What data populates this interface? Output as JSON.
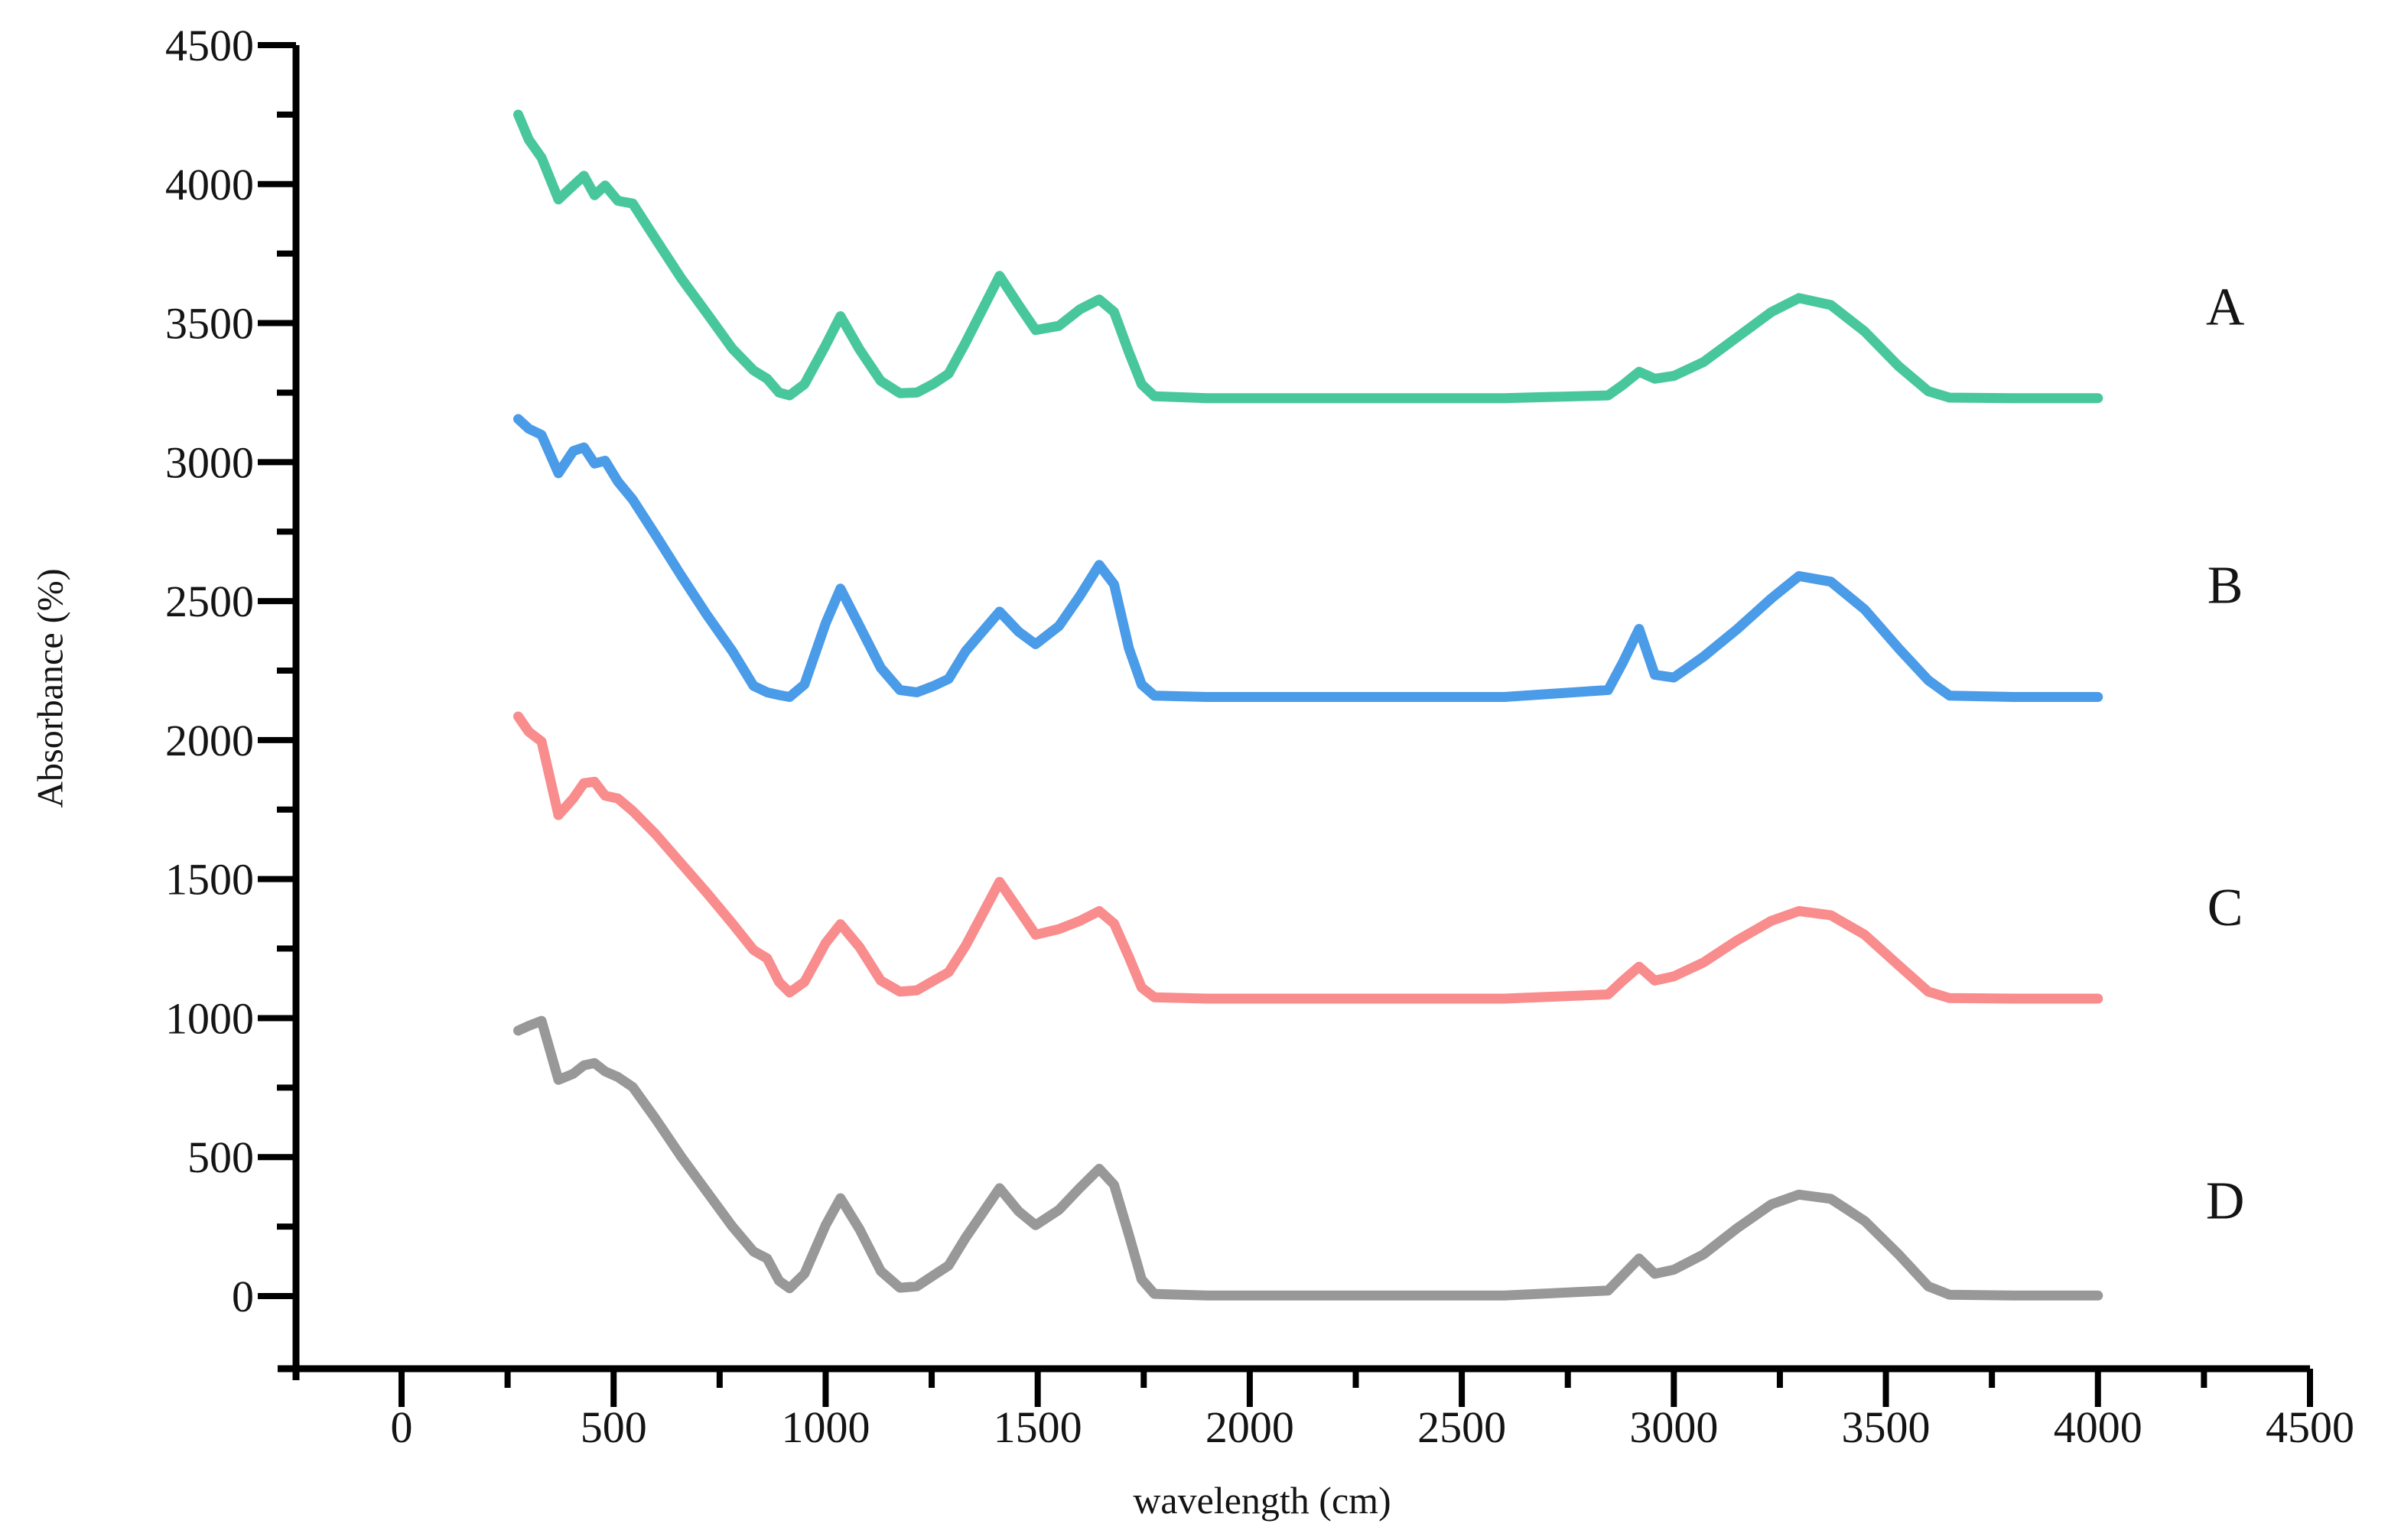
{
  "page": {
    "background": "#ffffff"
  },
  "axes": {
    "axis_color": "#000000",
    "label_color": "#141414",
    "x": {
      "title": "wavelength (cm)",
      "min": 0,
      "max": 4500,
      "major_step": 500,
      "minor_step": 250,
      "tick_labels": [
        "0",
        "500",
        "1000",
        "1500",
        "2000",
        "2500",
        "3000",
        "3500",
        "4000",
        "4500"
      ]
    },
    "y": {
      "title": "Absorbance (%)",
      "min": 0,
      "max": 4500,
      "major_step": 500,
      "minor_step": 250,
      "tick_labels": [
        "0",
        "500",
        "1000",
        "1500",
        "2000",
        "2500",
        "3000",
        "3500",
        "4000",
        "4500"
      ]
    }
  },
  "chart_data": {
    "type": "line",
    "title": "",
    "xlabel": "wavelength (cm)",
    "ylabel": "Absorbance (%)",
    "xlim": [
      0,
      4500
    ],
    "ylim": [
      0,
      4500
    ],
    "grid": false,
    "legend_position": "labels-at-right-of-each-curve",
    "x": [
      275,
      300,
      330,
      370,
      405,
      430,
      455,
      480,
      510,
      545,
      600,
      660,
      720,
      780,
      830,
      862,
      890,
      915,
      950,
      1000,
      1035,
      1080,
      1130,
      1175,
      1215,
      1255,
      1290,
      1330,
      1410,
      1455,
      1495,
      1550,
      1600,
      1645,
      1680,
      1715,
      1745,
      1775,
      1900,
      2200,
      2600,
      2845,
      2880,
      2918,
      2955,
      3000,
      3070,
      3150,
      3230,
      3295,
      3370,
      3450,
      3530,
      3600,
      3650,
      3800,
      4000
    ],
    "series": [
      {
        "name": "A",
        "color": "#48C79C",
        "baseline": 3230,
        "label_at": {
          "x": 4300,
          "y": 3560
        },
        "y": [
          4250,
          4160,
          4095,
          3945,
          3995,
          4030,
          3960,
          3995,
          3940,
          3930,
          3800,
          3660,
          3535,
          3408,
          3330,
          3300,
          3250,
          3240,
          3280,
          3420,
          3525,
          3405,
          3292,
          3248,
          3250,
          3282,
          3318,
          3430,
          3670,
          3565,
          3475,
          3490,
          3550,
          3585,
          3540,
          3395,
          3280,
          3237,
          3230,
          3230,
          3230,
          3240,
          3278,
          3325,
          3300,
          3310,
          3360,
          3450,
          3540,
          3590,
          3565,
          3470,
          3345,
          3255,
          3232,
          3230,
          3230
        ]
      },
      {
        "name": "B",
        "color": "#4A9BE8",
        "baseline": 2150,
        "label_at": {
          "x": 4300,
          "y": 2560
        },
        "y": [
          3155,
          3120,
          3098,
          2960,
          3040,
          3053,
          2995,
          3005,
          2930,
          2865,
          2735,
          2590,
          2450,
          2320,
          2195,
          2172,
          2162,
          2155,
          2200,
          2420,
          2545,
          2410,
          2260,
          2180,
          2172,
          2195,
          2220,
          2320,
          2462,
          2390,
          2345,
          2410,
          2520,
          2630,
          2560,
          2330,
          2200,
          2160,
          2155,
          2155,
          2155,
          2180,
          2280,
          2400,
          2235,
          2225,
          2300,
          2400,
          2510,
          2590,
          2570,
          2470,
          2330,
          2215,
          2160,
          2155,
          2155
        ]
      },
      {
        "name": "C",
        "color": "#F98C8C",
        "baseline": 1070,
        "label_at": {
          "x": 4300,
          "y": 1400
        },
        "y": [
          2085,
          2030,
          1995,
          1730,
          1790,
          1845,
          1850,
          1800,
          1790,
          1745,
          1660,
          1555,
          1450,
          1340,
          1245,
          1215,
          1130,
          1092,
          1130,
          1270,
          1338,
          1255,
          1135,
          1095,
          1100,
          1135,
          1165,
          1260,
          1490,
          1390,
          1300,
          1320,
          1350,
          1385,
          1340,
          1220,
          1110,
          1075,
          1070,
          1070,
          1070,
          1085,
          1135,
          1185,
          1135,
          1150,
          1200,
          1280,
          1350,
          1385,
          1370,
          1300,
          1190,
          1095,
          1072,
          1070,
          1070
        ]
      },
      {
        "name": "D",
        "color": "#989898",
        "baseline": 0,
        "label_at": {
          "x": 4300,
          "y": 345
        },
        "y": [
          955,
          972,
          990,
          778,
          800,
          830,
          838,
          808,
          788,
          752,
          635,
          500,
          375,
          250,
          160,
          135,
          55,
          28,
          80,
          255,
          352,
          240,
          90,
          30,
          35,
          75,
          110,
          210,
          388,
          305,
          255,
          310,
          390,
          458,
          400,
          220,
          60,
          8,
          2,
          2,
          2,
          20,
          75,
          135,
          80,
          95,
          150,
          245,
          330,
          365,
          350,
          270,
          150,
          35,
          5,
          2,
          2
        ]
      }
    ]
  }
}
